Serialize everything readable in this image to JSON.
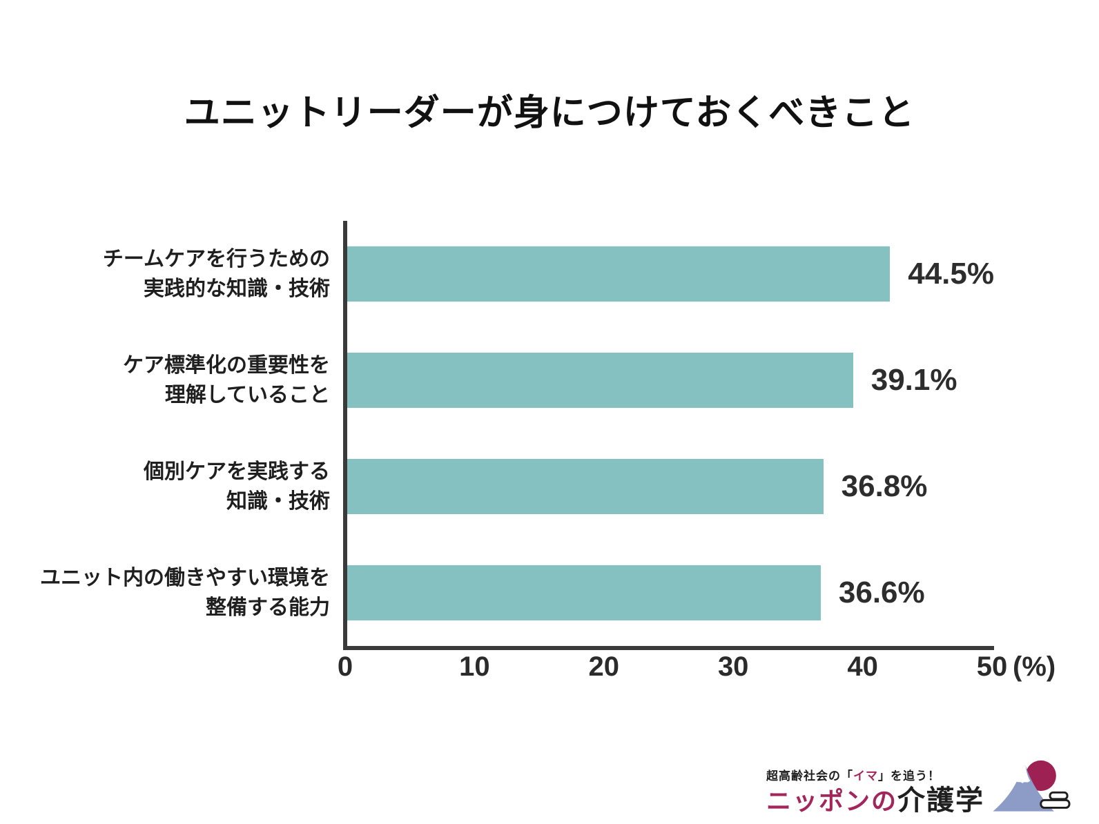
{
  "chart_data": {
    "type": "bar",
    "orientation": "horizontal",
    "title": "ユニットリーダーが身につけておくべきこと",
    "categories": [
      "チームケアを行うための実践的な知識・技術",
      "ケア標準化の重要性を理解していること",
      "個別ケアを実践する知識・技術",
      "ユニット内の働きやすい環境を整備する能力"
    ],
    "category_lines": [
      [
        "チームケアを行うための",
        "実践的な知識・技術"
      ],
      [
        "ケア標準化の重要性を",
        "理解していること"
      ],
      [
        "個別ケアを実践する",
        "知識・技術"
      ],
      [
        "ユニット内の働きやすい環境を",
        "整備する能力"
      ]
    ],
    "values": [
      44.5,
      39.1,
      36.8,
      36.6
    ],
    "value_labels": [
      "44.5%",
      "39.1%",
      "36.8%",
      "36.6%"
    ],
    "xlabel": "",
    "ylabel": "",
    "xlim": [
      0,
      50
    ],
    "xticks": [
      0,
      10,
      20,
      30,
      40,
      50
    ],
    "x_unit": "(%)",
    "grid": false,
    "legend": "none"
  },
  "colors": {
    "bar": "#85c1c1",
    "axis": "#3a3a3a",
    "text": "#2b2b2b",
    "accent": "#a3255a",
    "fuji_mountain": "#8d9bc7",
    "fuji_sun": "#9e2154"
  },
  "logo": {
    "tagline_prefix": "超高齢社会の「",
    "tagline_highlight": "イマ",
    "tagline_suffix": "」を追う！",
    "brand_first": "ニッポンの",
    "brand_second": "介護学"
  }
}
